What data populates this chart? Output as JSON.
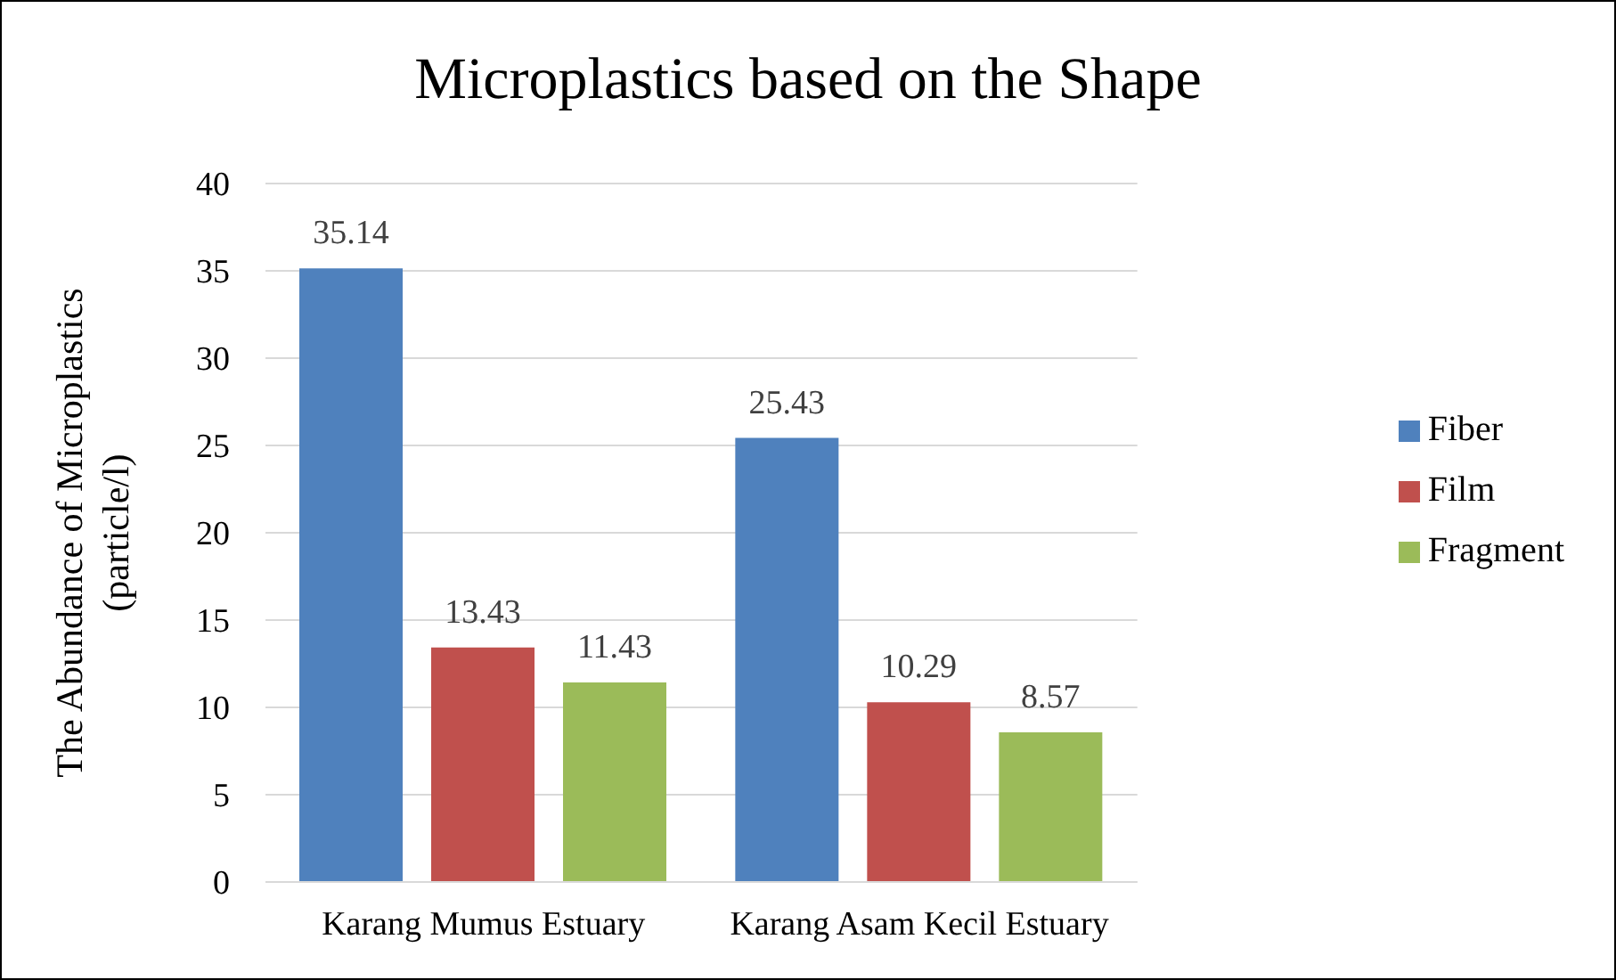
{
  "chart_data": {
    "type": "bar",
    "title": "Microplastics based on the Shape",
    "ylabel": "The Abundance of Microplastics (particle/l)",
    "categories": [
      "Karang Mumus Estuary",
      "Karang Asam Kecil Estuary"
    ],
    "series": [
      {
        "name": "Fiber",
        "color": "#4f81bd",
        "values": [
          35.14,
          25.43
        ]
      },
      {
        "name": "Film",
        "color": "#c0504d",
        "values": [
          13.43,
          10.29
        ]
      },
      {
        "name": "Fragment",
        "color": "#9bbb59",
        "values": [
          11.43,
          8.57
        ]
      }
    ],
    "ylim": [
      0,
      40
    ],
    "yticks": [
      0,
      5,
      10,
      15,
      20,
      25,
      30,
      35,
      40
    ],
    "grid": "y",
    "legend": "right",
    "data_labels": true
  }
}
